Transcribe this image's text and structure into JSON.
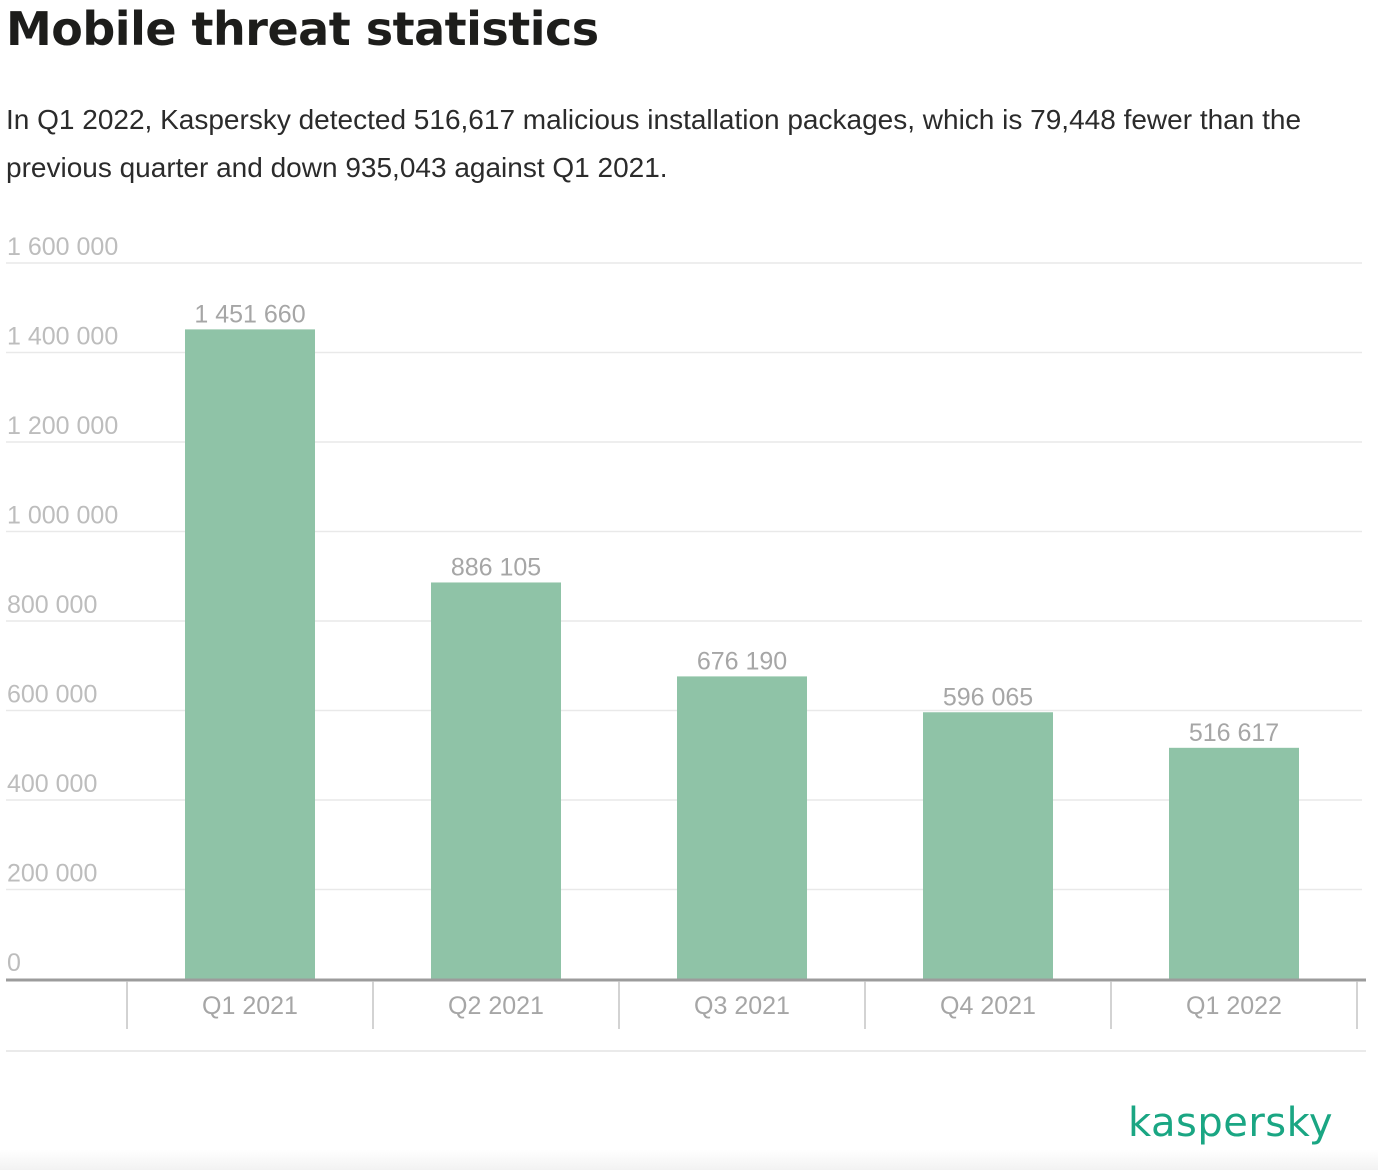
{
  "header": {
    "title": "Mobile threat statistics",
    "subtitle": "In Q1 2022, Kaspersky detected 516,617 malicious installation packages, which is 79,448 fewer than the previous quarter and down 935,043 against Q1 2021."
  },
  "brand": {
    "logo_text": "kaspersky",
    "color": "#1aa683"
  },
  "chart_data": {
    "type": "bar",
    "categories": [
      "Q1 2021",
      "Q2 2021",
      "Q3 2021",
      "Q4 2021",
      "Q1 2022"
    ],
    "values": [
      1451660,
      886105,
      676190,
      596065,
      516617
    ],
    "data_labels": [
      "1 451 660",
      "886 105",
      "676 190",
      "596 065",
      "516 617"
    ],
    "ylim": [
      0,
      1600000
    ],
    "yticks": [
      0,
      200000,
      400000,
      600000,
      800000,
      1000000,
      1200000,
      1400000,
      1600000
    ],
    "ytick_labels": [
      "0",
      "200 000",
      "400 000",
      "600 000",
      "800 000",
      "1 000 000",
      "1 200 000",
      "1 400 000",
      "1 600 000"
    ],
    "grid": true,
    "legend": "none",
    "bar_color": "#8fc3a7",
    "xlabel": "",
    "ylabel": ""
  }
}
